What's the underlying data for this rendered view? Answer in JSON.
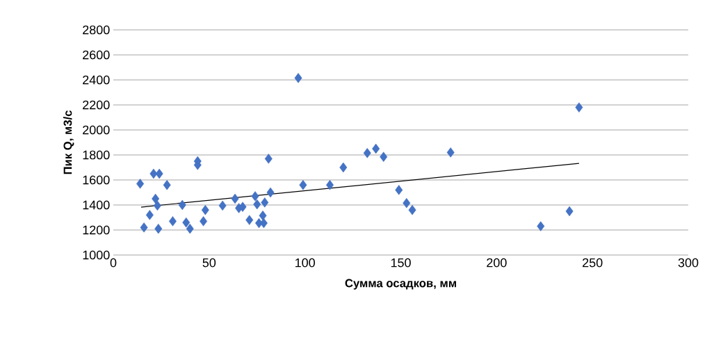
{
  "chart_data": {
    "type": "scatter",
    "xlabel": "Сумма осадков, мм",
    "ylabel": "Пик Q, м3/с",
    "xlim": [
      0,
      300
    ],
    "xticks": [
      0,
      50,
      100,
      150,
      200,
      250,
      300
    ],
    "ylim": [
      1000,
      2800
    ],
    "yticks": [
      1000,
      1200,
      1400,
      1600,
      1800,
      2000,
      2200,
      2400,
      2600,
      2800
    ],
    "grid": "y",
    "series": [
      {
        "color": "#4472c4",
        "marker": "diamond",
        "x": [
          14,
          16,
          19,
          21,
          22,
          23,
          23.5,
          24,
          28,
          31,
          36,
          38,
          40,
          44,
          44,
          47,
          48,
          57,
          63.5,
          65.5,
          67.5,
          71,
          74,
          75,
          76,
          78,
          78.5,
          79,
          81,
          82,
          96.5,
          99,
          113,
          120,
          132.5,
          137,
          141,
          149,
          153,
          156,
          176,
          223,
          238,
          243
        ],
        "values": [
          1570,
          1220,
          1320,
          1650,
          1450,
          1395,
          1210,
          1650,
          1560,
          1270,
          1400,
          1260,
          1210,
          1750,
          1720,
          1270,
          1360,
          1395,
          1450,
          1375,
          1385,
          1280,
          1470,
          1405,
          1255,
          1315,
          1255,
          1420,
          1770,
          1500,
          2415,
          1560,
          1560,
          1700,
          1815,
          1850,
          1785,
          1520,
          1415,
          1360,
          1820,
          1230,
          1350,
          2180
        ]
      },
      {
        "type": "line",
        "color": "#000000",
        "marker": "none",
        "line_style": "solid",
        "x": [
          14.5,
          243
        ],
        "values": [
          1383,
          1733
        ]
      }
    ]
  }
}
